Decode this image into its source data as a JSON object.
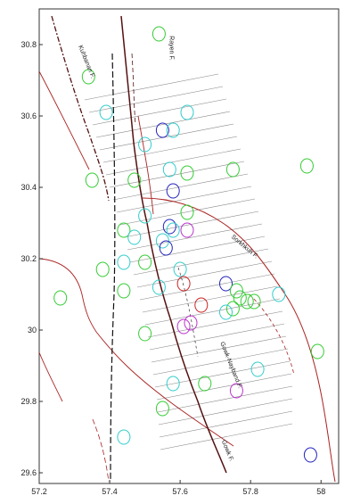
{
  "axes": {
    "x_ticks": [
      "57.2",
      "57.4",
      "57.6",
      "57.8",
      "58"
    ],
    "y_ticks": [
      "30.8",
      "30.6",
      "30.4",
      "30.2",
      "30",
      "29.8",
      "29.6"
    ],
    "xlim": [
      57.2,
      58.05
    ],
    "ylim": [
      29.57,
      30.9
    ]
  },
  "fault_labels": [
    {
      "text": "Kuhbanan F.",
      "x": 57.33,
      "y": 30.75,
      "angle": 68
    },
    {
      "text": "Rayen F.",
      "x": 57.57,
      "y": 30.79,
      "angle": 90
    },
    {
      "text": "Sorkhkuh F.",
      "x": 57.78,
      "y": 30.23,
      "angle": 40
    },
    {
      "text": "Gowk-Nayband F.",
      "x": 57.74,
      "y": 29.9,
      "angle": 68
    },
    {
      "text": "Gowk F.",
      "x": 57.73,
      "y": 29.66,
      "angle": 68
    }
  ],
  "colors": {
    "green": "#33cc33",
    "cyan": "#33cccc",
    "blue": "#2222bb",
    "magenta": "#bb33cc",
    "red": "#cc2222",
    "fault_dark": "#551111",
    "fault_red": "#aa2222",
    "hatch": "#888888"
  },
  "events": [
    {
      "lon": 57.34,
      "lat": 30.71,
      "color": "green"
    },
    {
      "lon": 57.39,
      "lat": 30.61,
      "color": "cyan"
    },
    {
      "lon": 57.54,
      "lat": 30.83,
      "color": "green"
    },
    {
      "lon": 57.62,
      "lat": 30.61,
      "color": "cyan"
    },
    {
      "lon": 57.55,
      "lat": 30.56,
      "color": "blue"
    },
    {
      "lon": 57.58,
      "lat": 30.56,
      "color": "cyan"
    },
    {
      "lon": 57.5,
      "lat": 30.52,
      "color": "cyan"
    },
    {
      "lon": 57.35,
      "lat": 30.42,
      "color": "green"
    },
    {
      "lon": 57.47,
      "lat": 30.42,
      "color": "green"
    },
    {
      "lon": 57.57,
      "lat": 30.45,
      "color": "cyan"
    },
    {
      "lon": 57.62,
      "lat": 30.44,
      "color": "green"
    },
    {
      "lon": 57.75,
      "lat": 30.45,
      "color": "green"
    },
    {
      "lon": 57.96,
      "lat": 30.46,
      "color": "green"
    },
    {
      "lon": 57.58,
      "lat": 30.39,
      "color": "blue"
    },
    {
      "lon": 57.5,
      "lat": 30.32,
      "color": "cyan"
    },
    {
      "lon": 57.62,
      "lat": 30.33,
      "color": "green"
    },
    {
      "lon": 57.57,
      "lat": 30.29,
      "color": "blue"
    },
    {
      "lon": 57.58,
      "lat": 30.28,
      "color": "cyan"
    },
    {
      "lon": 57.62,
      "lat": 30.28,
      "color": "magenta"
    },
    {
      "lon": 57.44,
      "lat": 30.28,
      "color": "green"
    },
    {
      "lon": 57.47,
      "lat": 30.26,
      "color": "cyan"
    },
    {
      "lon": 57.55,
      "lat": 30.25,
      "color": "cyan"
    },
    {
      "lon": 57.56,
      "lat": 30.23,
      "color": "blue"
    },
    {
      "lon": 57.44,
      "lat": 30.19,
      "color": "cyan"
    },
    {
      "lon": 57.5,
      "lat": 30.19,
      "color": "green"
    },
    {
      "lon": 57.38,
      "lat": 30.17,
      "color": "green"
    },
    {
      "lon": 57.6,
      "lat": 30.17,
      "color": "cyan"
    },
    {
      "lon": 57.61,
      "lat": 30.13,
      "color": "red"
    },
    {
      "lon": 57.54,
      "lat": 30.12,
      "color": "cyan"
    },
    {
      "lon": 57.44,
      "lat": 30.11,
      "color": "green"
    },
    {
      "lon": 57.73,
      "lat": 30.13,
      "color": "blue"
    },
    {
      "lon": 57.26,
      "lat": 30.09,
      "color": "green"
    },
    {
      "lon": 57.76,
      "lat": 30.11,
      "color": "green"
    },
    {
      "lon": 57.77,
      "lat": 30.09,
      "color": "green"
    },
    {
      "lon": 57.79,
      "lat": 30.08,
      "color": "green"
    },
    {
      "lon": 57.81,
      "lat": 30.08,
      "color": "green"
    },
    {
      "lon": 57.75,
      "lat": 30.06,
      "color": "green"
    },
    {
      "lon": 57.88,
      "lat": 30.1,
      "color": "cyan"
    },
    {
      "lon": 57.73,
      "lat": 30.05,
      "color": "cyan"
    },
    {
      "lon": 57.63,
      "lat": 30.02,
      "color": "magenta"
    },
    {
      "lon": 57.61,
      "lat": 30.01,
      "color": "magenta"
    },
    {
      "lon": 57.66,
      "lat": 30.07,
      "color": "red"
    },
    {
      "lon": 57.5,
      "lat": 29.99,
      "color": "green"
    },
    {
      "lon": 57.99,
      "lat": 29.94,
      "color": "green"
    },
    {
      "lon": 57.82,
      "lat": 29.89,
      "color": "cyan"
    },
    {
      "lon": 57.58,
      "lat": 29.85,
      "color": "cyan"
    },
    {
      "lon": 57.67,
      "lat": 29.85,
      "color": "green"
    },
    {
      "lon": 57.76,
      "lat": 29.83,
      "color": "magenta"
    },
    {
      "lon": 57.55,
      "lat": 29.78,
      "color": "green"
    },
    {
      "lon": 57.44,
      "lat": 29.7,
      "color": "cyan"
    },
    {
      "lon": 57.97,
      "lat": 29.65,
      "color": "blue"
    }
  ]
}
